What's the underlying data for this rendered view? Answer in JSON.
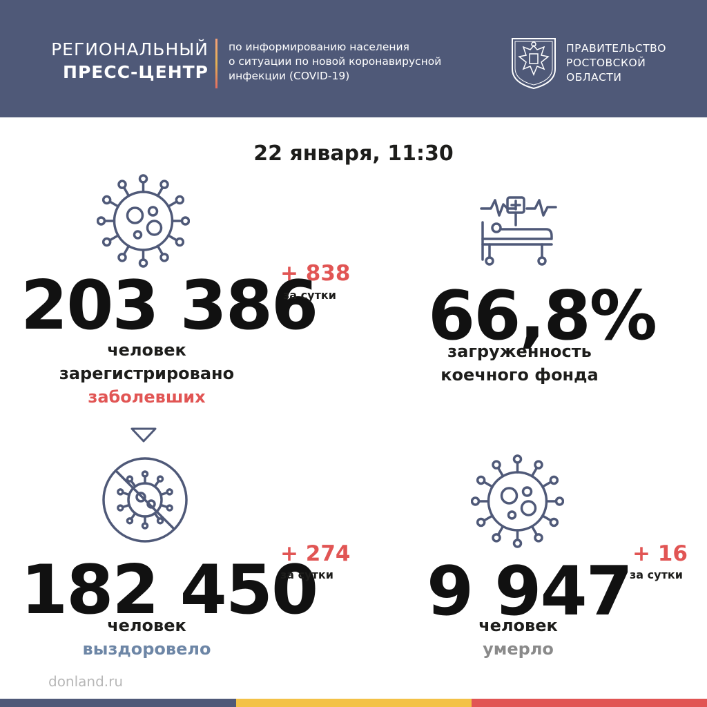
{
  "header": {
    "title_line1": "РЕГИОНАЛЬНЫЙ",
    "title_line2": "ПРЕСС-ЦЕНТР",
    "desc_lines": [
      "по информированию населения",
      "о ситуации по новой коронавирусной",
      "инфекции (COVID-19)"
    ],
    "gov_lines": [
      "ПРАВИТЕЛЬСТВО",
      "РОСТОВСКОЙ",
      "ОБЛАСТИ"
    ]
  },
  "date": "22 января, 11:30",
  "cases": {
    "value": "203 386",
    "delta": "+ 838",
    "delta_label": "за сутки",
    "caption_line1": "человек",
    "caption_line2": "зарегистрировано",
    "caption_line3": "заболевших"
  },
  "beds": {
    "value": "66,8%",
    "caption_line1": "загруженность",
    "caption_line2": "коечного фонда"
  },
  "recovered": {
    "value": "182 450",
    "delta": "+ 274",
    "delta_label": "за сутки",
    "caption_line1": "человек",
    "caption_line2": "выздоровело"
  },
  "deaths": {
    "value": "9 947",
    "delta": "+ 16",
    "delta_label": "за сутки",
    "caption_line1": "человек",
    "caption_line2": "умерло"
  },
  "footer": {
    "site": "donland.ru"
  },
  "colors": {
    "header_bg": "#4f5978",
    "accent_red": "#e15554",
    "accent_blue": "#6d86a6",
    "icon_stroke": "#4f5978",
    "bar_colors": [
      "#4f5978",
      "#f3c247",
      "#e15554"
    ]
  },
  "icons": [
    "coat-of-arms-icon",
    "virus-icon",
    "hospital-bed-icon",
    "arrow-down-icon",
    "no-virus-icon"
  ]
}
